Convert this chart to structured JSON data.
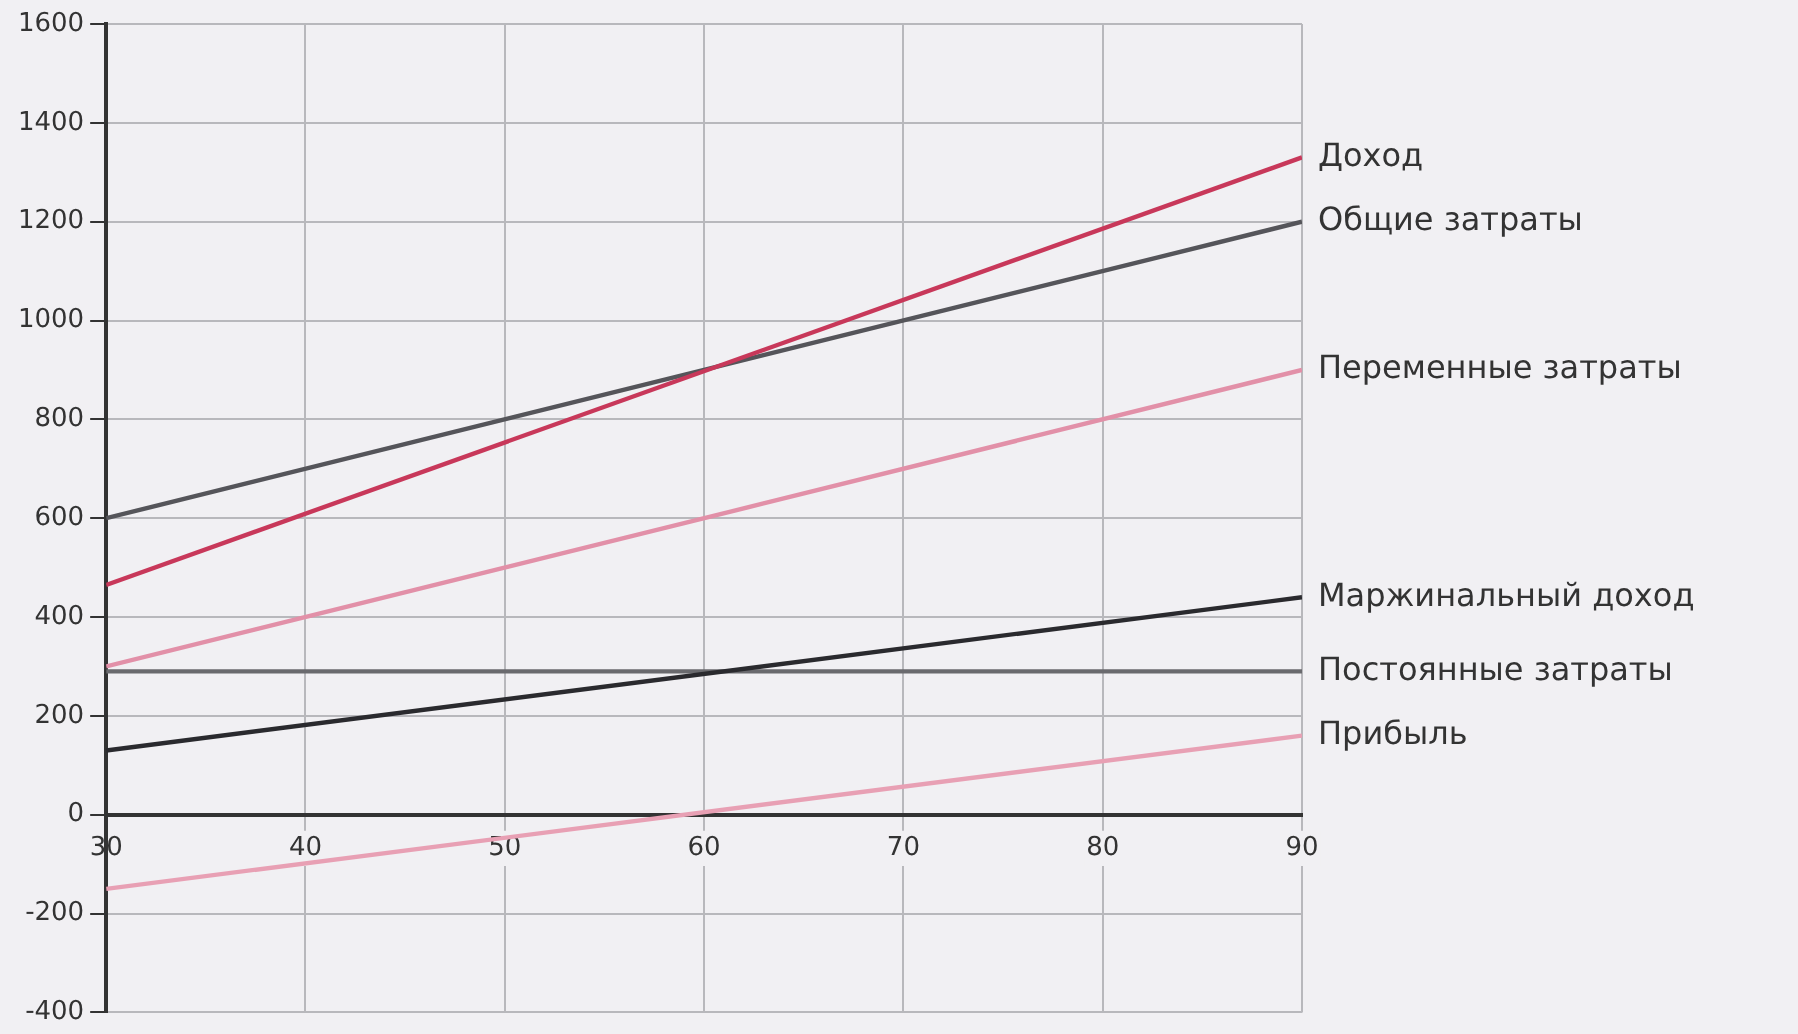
{
  "chart_data": {
    "type": "line",
    "x": [
      30,
      90
    ],
    "xlim": [
      30,
      90
    ],
    "xticks": [
      30,
      40,
      50,
      60,
      70,
      80,
      90
    ],
    "ylim": [
      -400,
      1600
    ],
    "yticks": [
      -400,
      -200,
      0,
      200,
      400,
      600,
      800,
      1000,
      1200,
      1400,
      1600
    ],
    "grid": true,
    "marker": "none",
    "line_style": "solid",
    "series": [
      {
        "name": "Доход",
        "color": "#c8385a",
        "values": [
          465,
          1330
        ]
      },
      {
        "name": "Общие затраты",
        "color": "#55555a",
        "values": [
          600,
          1200
        ]
      },
      {
        "name": "Переменные затраты",
        "color": "#e290a8",
        "values": [
          300,
          900
        ]
      },
      {
        "name": "Маржинальный доход",
        "color": "#2a2a2e",
        "values": [
          130,
          440
        ]
      },
      {
        "name": "Постоянные затраты",
        "color": "#6a6a6e",
        "values": [
          290,
          290
        ]
      },
      {
        "name": "Прибыль",
        "color": "#e8a0b4",
        "values": [
          -150,
          160
        ]
      }
    ]
  }
}
